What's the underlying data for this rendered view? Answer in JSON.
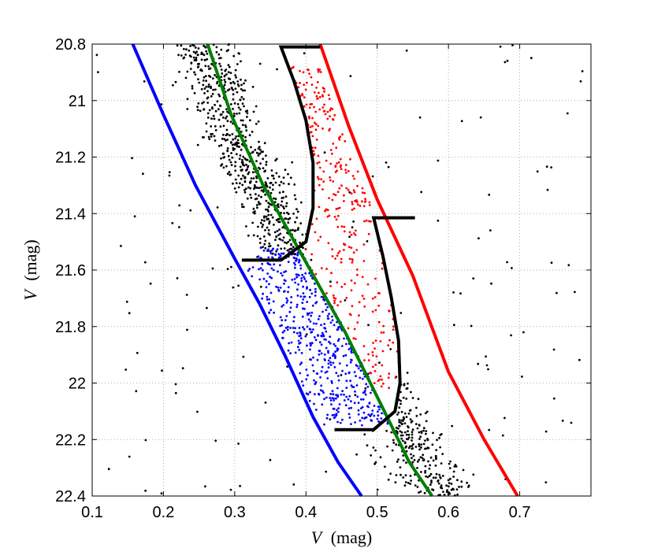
{
  "chart_data": {
    "type": "scatter",
    "title": "",
    "xlabel_var": "V",
    "xlabel_unit": "(mag)",
    "ylabel_var": "V",
    "ylabel_unit": "(mag)",
    "xlim": [
      0.1,
      0.8
    ],
    "ylim": [
      22.4,
      20.8
    ],
    "y_inverted": true,
    "grid": true,
    "grid_style": "dotted",
    "xticks": [
      0.1,
      0.2,
      0.3,
      0.4,
      0.5,
      0.6,
      0.7
    ],
    "xtick_labels": [
      "0.1",
      "0.2",
      "0.3",
      "0.4",
      "0.5",
      "0.6",
      "0.7"
    ],
    "yticks": [
      20.8,
      21.0,
      21.2,
      21.4,
      21.6,
      21.8,
      22.0,
      22.2,
      22.4
    ],
    "ytick_labels": [
      "20.8",
      "21",
      "21.2",
      "21.4",
      "21.6",
      "21.8",
      "22",
      "22.2",
      "22.4"
    ],
    "colors": {
      "blue": "#0000ff",
      "green": "#007f00",
      "red": "#ff0000",
      "black": "#000000"
    },
    "series": [
      {
        "key": "field-stars",
        "kind": "points",
        "color": "#000000",
        "region": "whole-field",
        "count": 1400,
        "seed": 7,
        "description_values_note": "sparse scatter of field stars plus dense main sequence above 21.55 and below 22.05"
      },
      {
        "key": "red-stars",
        "kind": "points",
        "color": "#ff0000",
        "count": 330,
        "seed": 11
      },
      {
        "key": "blue-stars",
        "kind": "points",
        "color": "#0000ff",
        "count": 520,
        "seed": 23
      },
      {
        "key": "blue-boundary-line",
        "kind": "line",
        "color": "#0000ff",
        "points": [
          [
            0.157,
            20.8
          ],
          [
            0.2,
            21.05
          ],
          [
            0.245,
            21.3
          ],
          [
            0.3,
            21.56
          ],
          [
            0.335,
            21.72
          ],
          [
            0.37,
            21.9
          ],
          [
            0.41,
            22.12
          ],
          [
            0.445,
            22.28
          ],
          [
            0.478,
            22.4
          ]
        ]
      },
      {
        "key": "green-ridge-line",
        "kind": "line",
        "color": "#007f00",
        "points": [
          [
            0.262,
            20.8
          ],
          [
            0.295,
            21.05
          ],
          [
            0.34,
            21.3
          ],
          [
            0.395,
            21.55
          ],
          [
            0.455,
            21.82
          ],
          [
            0.51,
            22.1
          ],
          [
            0.545,
            22.28
          ],
          [
            0.577,
            22.4
          ]
        ]
      },
      {
        "key": "red-boundary-line",
        "kind": "line",
        "color": "#ff0000",
        "points": [
          [
            0.42,
            20.8
          ],
          [
            0.46,
            21.09
          ],
          [
            0.5,
            21.35
          ],
          [
            0.55,
            21.62
          ],
          [
            0.6,
            21.96
          ],
          [
            0.65,
            22.2
          ],
          [
            0.697,
            22.4
          ]
        ]
      },
      {
        "key": "upper-selection-box",
        "kind": "line",
        "color": "#000000",
        "points": [
          [
            0.42,
            20.81
          ],
          [
            0.365,
            20.81
          ],
          [
            0.383,
            20.93
          ],
          [
            0.4,
            21.07
          ],
          [
            0.41,
            21.22
          ],
          [
            0.41,
            21.38
          ],
          [
            0.4,
            21.5
          ],
          [
            0.365,
            21.565
          ],
          [
            0.31,
            21.565
          ]
        ]
      },
      {
        "key": "lower-selection-box",
        "kind": "line",
        "color": "#000000",
        "points": [
          [
            0.553,
            21.415
          ],
          [
            0.495,
            21.415
          ],
          [
            0.508,
            21.55
          ],
          [
            0.52,
            21.7
          ],
          [
            0.53,
            21.85
          ],
          [
            0.532,
            22.0
          ],
          [
            0.525,
            22.1
          ],
          [
            0.495,
            22.165
          ],
          [
            0.44,
            22.165
          ]
        ]
      }
    ]
  }
}
